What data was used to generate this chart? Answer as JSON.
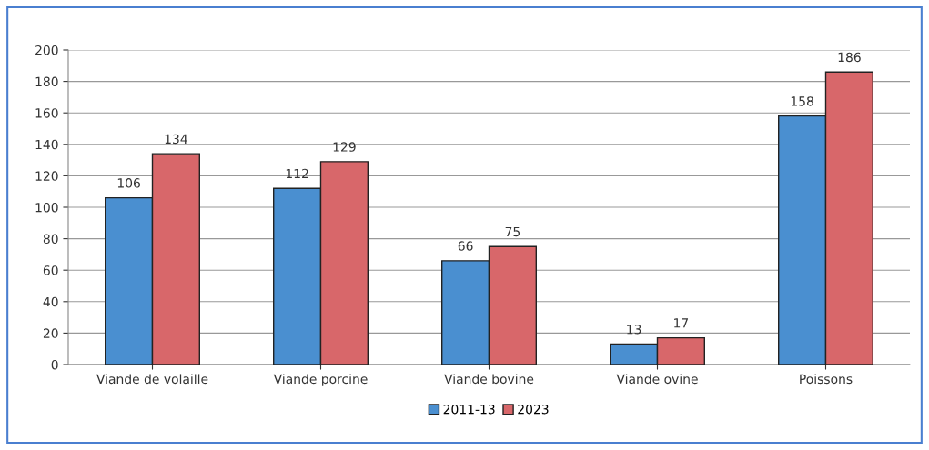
{
  "chart_data": {
    "type": "bar",
    "categories": [
      "Viande de volaille",
      "Viande porcine",
      "Viande bovine",
      "Viande ovine",
      "Poissons"
    ],
    "series": [
      {
        "name": "2011-13",
        "color": "#4a8fd0",
        "values": [
          106,
          112,
          66,
          13,
          158
        ]
      },
      {
        "name": "2023",
        "color": "#d8676a",
        "values": [
          134,
          129,
          75,
          17,
          186
        ]
      }
    ],
    "ylim": [
      0,
      200
    ],
    "yticks": [
      0,
      20,
      40,
      60,
      80,
      100,
      120,
      140,
      160,
      180,
      200
    ],
    "grid": "y",
    "legend": "bottom",
    "data_labels": true
  }
}
